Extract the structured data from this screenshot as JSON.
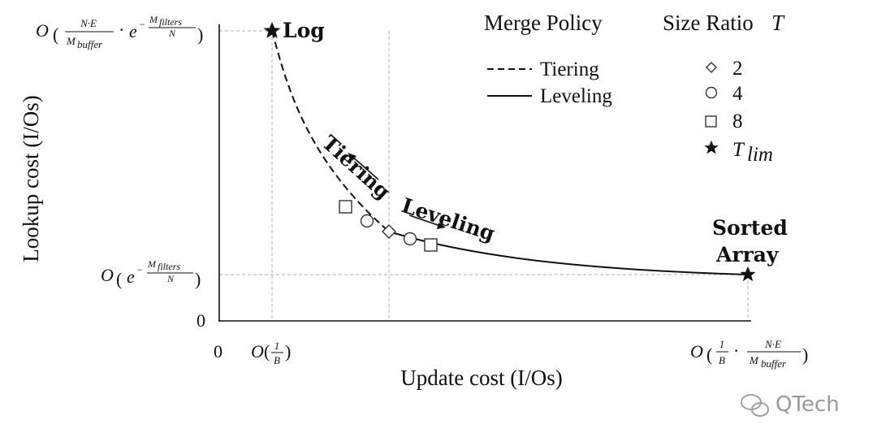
{
  "axes": {
    "x_title": "Update cost (I/Os)",
    "y_title": "Lookup cost (I/Os)",
    "x_ticks": {
      "zero": "0",
      "one_over_b": {
        "prefix": "O",
        "numerator": "1",
        "denominator": "B"
      },
      "sorted_array": {
        "prefix": "O",
        "lead_numerator": "1",
        "lead_denominator": "B",
        "dot": "·",
        "numerator": "N·E",
        "denominator": "M",
        "denominator_sub": "buffer"
      }
    },
    "y_ticks": {
      "zero": "0",
      "log": {
        "prefix": "O",
        "numerator": "N·E",
        "denominator": "M",
        "denominator_sub": "buffer",
        "dot": "·",
        "exp_base": "e",
        "exp_sign": "−",
        "exp_numerator": "M",
        "exp_numerator_sub": "filters",
        "exp_denominator": "N"
      },
      "sorted": {
        "prefix": "O",
        "exp_base": "e",
        "exp_sign": "−",
        "exp_numerator": "M",
        "exp_numerator_sub": "filters",
        "exp_denominator": "N"
      }
    }
  },
  "points": {
    "log_label": "Log",
    "sorted_label_line1": "Sorted",
    "sorted_label_line2": "Array"
  },
  "arrows": {
    "tiering_label": "Tiering",
    "leveling_label": "Leveling"
  },
  "legend": {
    "merge_policy_title": "Merge Policy",
    "merge_items": [
      {
        "label": "Tiering",
        "style": "dashed"
      },
      {
        "label": "Leveling",
        "style": "solid"
      }
    ],
    "size_ratio_title": "Size Ratio",
    "size_ratio_symbol": "T",
    "size_items": [
      {
        "label": "2",
        "marker": "diamond"
      },
      {
        "label": "4",
        "marker": "circle"
      },
      {
        "label": "8",
        "marker": "square"
      },
      {
        "label": "T",
        "label_sub": "lim",
        "marker": "star"
      }
    ]
  },
  "watermark": "QTech",
  "colors": {
    "ink": "#111111",
    "guide": "#bdbdbd",
    "watermark": "#9a9a9a"
  }
}
